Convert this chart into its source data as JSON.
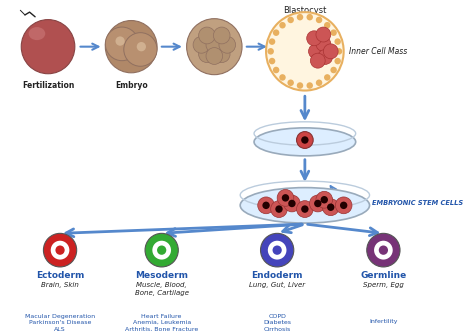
{
  "blastocyst_label": "Blastocyst",
  "inner_cell_mass": "Inner Cell Mass",
  "embryonic_stem_cells": "EMBRYONIC STEM CELLS",
  "cell_types": [
    "Ectoderm",
    "Mesoderm",
    "Endoderm",
    "Germline"
  ],
  "cell_subtypes": [
    "Brain, Skin",
    "Muscle, Blood,\nBone, Cartilage",
    "Lung, Gut, Liver",
    "Sperm, Egg"
  ],
  "diseases": [
    "Macular Degeneration\nParkinson's Disease\nALS",
    "Heart Failure\nAnemia, Leukemia\nArthritis, Bone Fracture",
    "COPD\nDiabetes\nCirrhosis",
    "Infertility"
  ],
  "cell_colors": [
    "#cc2222",
    "#33aa33",
    "#4444bb",
    "#773377"
  ],
  "arrow_color": "#5588cc",
  "text_color_blue": "#2255aa",
  "text_color_dark": "#222222",
  "fertilization_color": "#b05050",
  "embryo_color": "#b08868",
  "blastocyst_outer": "#fff5e0",
  "blastocyst_ring": "#e8b060",
  "icm_color": "#cc5555",
  "petri_fill": "#ddeeff",
  "petri_edge": "#99aabb"
}
